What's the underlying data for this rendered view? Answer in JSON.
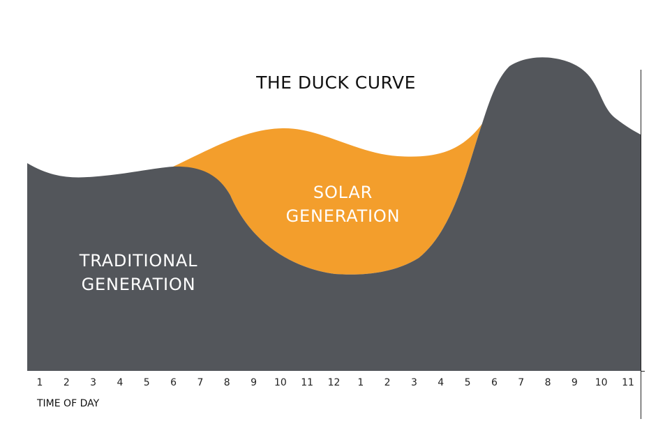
{
  "chart_data": {
    "type": "area",
    "title": "THE DUCK CURVE",
    "xlabel": "TIME OF DAY",
    "ylabel": "",
    "x_tick_labels": [
      "1",
      "2",
      "3",
      "4",
      "5",
      "6",
      "7",
      "8",
      "9",
      "10",
      "11",
      "12",
      "1",
      "2",
      "3",
      "4",
      "5",
      "6",
      "7",
      "8",
      "9",
      "10",
      "11"
    ],
    "areas": [
      {
        "label": "TRADITIONAL GENERATION",
        "color": "#53565b"
      },
      {
        "label": "SOLAR GENERATION",
        "color": "#f39e2c"
      }
    ],
    "grid": false,
    "legend": "none"
  }
}
